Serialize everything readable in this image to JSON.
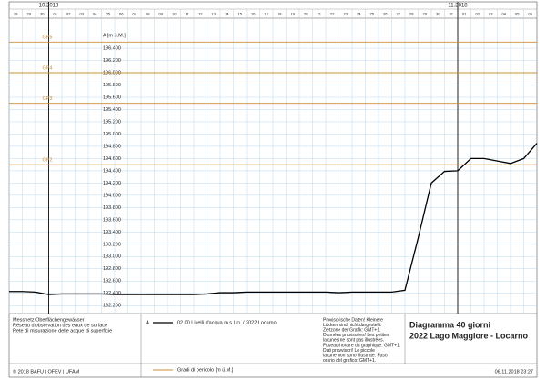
{
  "chart_data": {
    "type": "line",
    "title": "Diagramma 40 giorni",
    "subtitle": "2022 Lago Maggiore - Locarno",
    "y_label": "A [m ü.M.]",
    "xlim": [
      "2018-09-28",
      "2018-11-07"
    ],
    "month_labels": [
      {
        "value": "2018-10-01",
        "label": "10.2018"
      },
      {
        "value": "2018-11-01",
        "label": "11.2018"
      }
    ],
    "xticks": [
      {
        "value": "2018-09-28",
        "label": "28"
      },
      {
        "value": "2018-09-29",
        "label": "29"
      },
      {
        "value": "2018-09-30",
        "label": "30"
      },
      {
        "value": "2018-10-01",
        "label": "01"
      },
      {
        "value": "2018-10-02",
        "label": "02"
      },
      {
        "value": "2018-10-03",
        "label": "03"
      },
      {
        "value": "2018-10-04",
        "label": "04"
      },
      {
        "value": "2018-10-05",
        "label": "05"
      },
      {
        "value": "2018-10-06",
        "label": "06"
      },
      {
        "value": "2018-10-07",
        "label": "07"
      },
      {
        "value": "2018-10-08",
        "label": "08"
      },
      {
        "value": "2018-10-09",
        "label": "09"
      },
      {
        "value": "2018-10-10",
        "label": "10"
      },
      {
        "value": "2018-10-11",
        "label": "11"
      },
      {
        "value": "2018-10-12",
        "label": "12"
      },
      {
        "value": "2018-10-13",
        "label": "13"
      },
      {
        "value": "2018-10-14",
        "label": "14"
      },
      {
        "value": "2018-10-15",
        "label": "15"
      },
      {
        "value": "2018-10-16",
        "label": "16"
      },
      {
        "value": "2018-10-17",
        "label": "17"
      },
      {
        "value": "2018-10-18",
        "label": "18"
      },
      {
        "value": "2018-10-19",
        "label": "19"
      },
      {
        "value": "2018-10-20",
        "label": "20"
      },
      {
        "value": "2018-10-21",
        "label": "21"
      },
      {
        "value": "2018-10-22",
        "label": "22"
      },
      {
        "value": "2018-10-23",
        "label": "23"
      },
      {
        "value": "2018-10-24",
        "label": "24"
      },
      {
        "value": "2018-10-25",
        "label": "25"
      },
      {
        "value": "2018-10-26",
        "label": "26"
      },
      {
        "value": "2018-10-27",
        "label": "27"
      },
      {
        "value": "2018-10-28",
        "label": "28"
      },
      {
        "value": "2018-10-29",
        "label": "29"
      },
      {
        "value": "2018-10-30",
        "label": "30"
      },
      {
        "value": "2018-10-31",
        "label": "31"
      },
      {
        "value": "2018-11-01",
        "label": "01"
      },
      {
        "value": "2018-11-02",
        "label": "02"
      },
      {
        "value": "2018-11-03",
        "label": "03"
      },
      {
        "value": "2018-11-04",
        "label": "04"
      },
      {
        "value": "2018-11-05",
        "label": "05"
      },
      {
        "value": "2018-11-06",
        "label": "06"
      }
    ],
    "ylim": [
      192.07,
      196.89
    ],
    "yticks": [
      {
        "value": 192.2,
        "label": "192.200"
      },
      {
        "value": 192.4,
        "label": "192.400"
      },
      {
        "value": 192.6,
        "label": "192.600"
      },
      {
        "value": 192.8,
        "label": "192.800"
      },
      {
        "value": 193.0,
        "label": "193.000"
      },
      {
        "value": 193.2,
        "label": "193.200"
      },
      {
        "value": 193.4,
        "label": "193.400"
      },
      {
        "value": 193.6,
        "label": "193.600"
      },
      {
        "value": 193.8,
        "label": "193.800"
      },
      {
        "value": 194.0,
        "label": "194.000"
      },
      {
        "value": 194.2,
        "label": "194.200"
      },
      {
        "value": 194.4,
        "label": "194.400"
      },
      {
        "value": 194.6,
        "label": "194.600"
      },
      {
        "value": 194.8,
        "label": "194.800"
      },
      {
        "value": 195.0,
        "label": "195.000"
      },
      {
        "value": 195.2,
        "label": "195.200"
      },
      {
        "value": 195.4,
        "label": "195.400"
      },
      {
        "value": 195.6,
        "label": "195.600"
      },
      {
        "value": 195.8,
        "label": "195.800"
      },
      {
        "value": 196.0,
        "label": "196.000"
      },
      {
        "value": 196.2,
        "label": "196.200"
      },
      {
        "value": 196.4,
        "label": "196.400"
      }
    ],
    "grid": true,
    "danger_levels": {
      "name": "Gradi di pericolo [m ü.M.]",
      "color": "#c8903a",
      "levels": [
        {
          "label": "GP5",
          "value": 196.5
        },
        {
          "label": "GP4",
          "value": 196.0
        },
        {
          "label": "GP3",
          "value": 195.5
        },
        {
          "label": "GP2",
          "value": 194.5
        }
      ]
    },
    "x": [
      "2018-09-28",
      "2018-09-29",
      "2018-09-30",
      "2018-10-01",
      "2018-10-02",
      "2018-10-03",
      "2018-10-04",
      "2018-10-05",
      "2018-10-06",
      "2018-10-07",
      "2018-10-08",
      "2018-10-09",
      "2018-10-10",
      "2018-10-11",
      "2018-10-12",
      "2018-10-13",
      "2018-10-14",
      "2018-10-15",
      "2018-10-16",
      "2018-10-17",
      "2018-10-18",
      "2018-10-19",
      "2018-10-20",
      "2018-10-21",
      "2018-10-22",
      "2018-10-23",
      "2018-10-24",
      "2018-10-25",
      "2018-10-26",
      "2018-10-27",
      "2018-10-28",
      "2018-10-29",
      "2018-10-30",
      "2018-10-31",
      "2018-11-01",
      "2018-11-02",
      "2018-11-03",
      "2018-11-04",
      "2018-11-05",
      "2018-11-06",
      "2018-11-07"
    ],
    "series": [
      {
        "name": "02 00 Livelli d'acqua m s.l.m. / 2022 Locarno",
        "color": "#000000",
        "values": [
          192.43,
          192.43,
          192.42,
          192.38,
          192.39,
          192.39,
          192.39,
          192.39,
          192.38,
          192.38,
          192.38,
          192.38,
          192.38,
          192.38,
          192.38,
          192.39,
          192.41,
          192.41,
          192.42,
          192.42,
          192.42,
          192.42,
          192.42,
          192.42,
          192.42,
          192.41,
          192.42,
          192.42,
          192.42,
          192.42,
          192.45,
          193.3,
          194.2,
          194.39,
          194.4,
          194.6,
          194.6,
          194.56,
          194.52,
          194.6,
          194.85
        ]
      }
    ],
    "legend_axis": "A",
    "footer": {
      "stations": [
        "Messnetz Oberflächengewässer",
        "Réseau d'observation des eaux de surface",
        "Rete di misurazione delle acque di superficie"
      ],
      "notes": [
        "Provisorische Daten! Kleinere",
        "Lücken sind nicht dargestellt.",
        "Zeitzone der Grafik: GMT+1.",
        "Données provisoires! Les petites",
        "lacunes ne sont pas illustrées.",
        "Fuseau horaire du graphique: GMT+1.",
        "Dati provvisori! Le piccole",
        "lacune non sono illustrate. Fuso",
        "orario del grafico: GMT+1."
      ],
      "copyright": "© 2018 BAFU | OFEV | UFAM",
      "timestamp": "06.11.2018 23:27"
    }
  }
}
